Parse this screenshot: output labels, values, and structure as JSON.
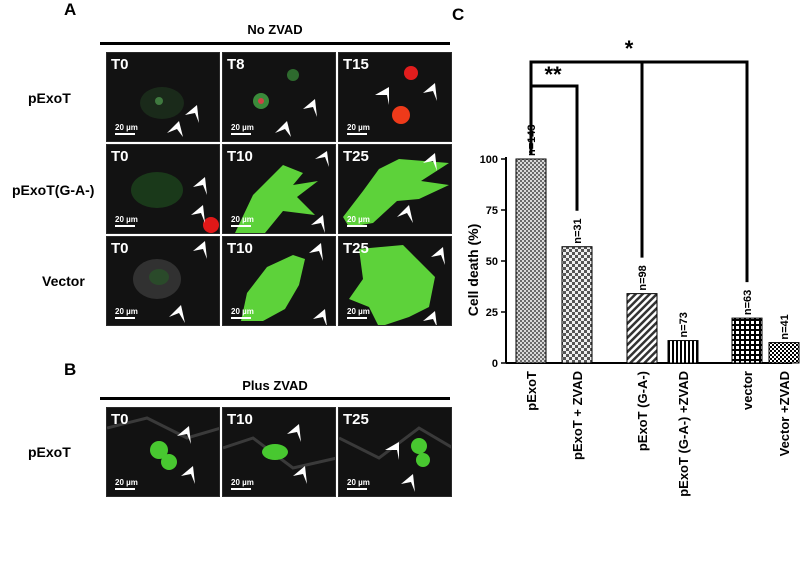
{
  "panel_a": {
    "letter": "A",
    "header": "No ZVAD",
    "rows": [
      {
        "label": "pExoT",
        "tiles": [
          {
            "time": "T0"
          },
          {
            "time": "T8"
          },
          {
            "time": "T15"
          }
        ]
      },
      {
        "label": "pExoT(G-A-)",
        "tiles": [
          {
            "time": "T0"
          },
          {
            "time": "T10"
          },
          {
            "time": "T25"
          }
        ]
      },
      {
        "label": "Vector",
        "tiles": [
          {
            "time": "T0"
          },
          {
            "time": "T10"
          },
          {
            "time": "T25"
          }
        ]
      }
    ]
  },
  "panel_b": {
    "letter": "B",
    "header": "Plus ZVAD",
    "rows": [
      {
        "label": "pExoT",
        "tiles": [
          {
            "time": "T0"
          },
          {
            "time": "T10"
          },
          {
            "time": "T25"
          }
        ]
      }
    ]
  },
  "scale_bar": "20 µm",
  "panel_c": {
    "letter": "C"
  },
  "chart_data": {
    "type": "bar",
    "categories": [
      "pExoT",
      "pExoT + ZVAD",
      "pExoT (G-A-)",
      "pExoT (G-A-) +ZVAD",
      "vector",
      "Vector +ZVAD"
    ],
    "values": [
      100,
      57,
      34,
      11,
      22,
      10
    ],
    "counts": [
      "n=143",
      "n=31",
      "n=98",
      "n=73",
      "n=63",
      "n=41"
    ],
    "patterns": [
      "dots-fine",
      "dots-coarse",
      "diagonal",
      "vertical",
      "grid",
      "checker"
    ],
    "ylabel": "Cell death  (%)",
    "ylim": [
      0,
      100
    ],
    "yticks": [
      "0",
      "25",
      "50",
      "75",
      "100"
    ],
    "significance": [
      {
        "label": "**",
        "from": "pExoT",
        "to": "pExoT + ZVAD"
      },
      {
        "label": "*",
        "from": "pExoT",
        "to": [
          "pExoT (G-A-)",
          "vector"
        ]
      }
    ]
  }
}
